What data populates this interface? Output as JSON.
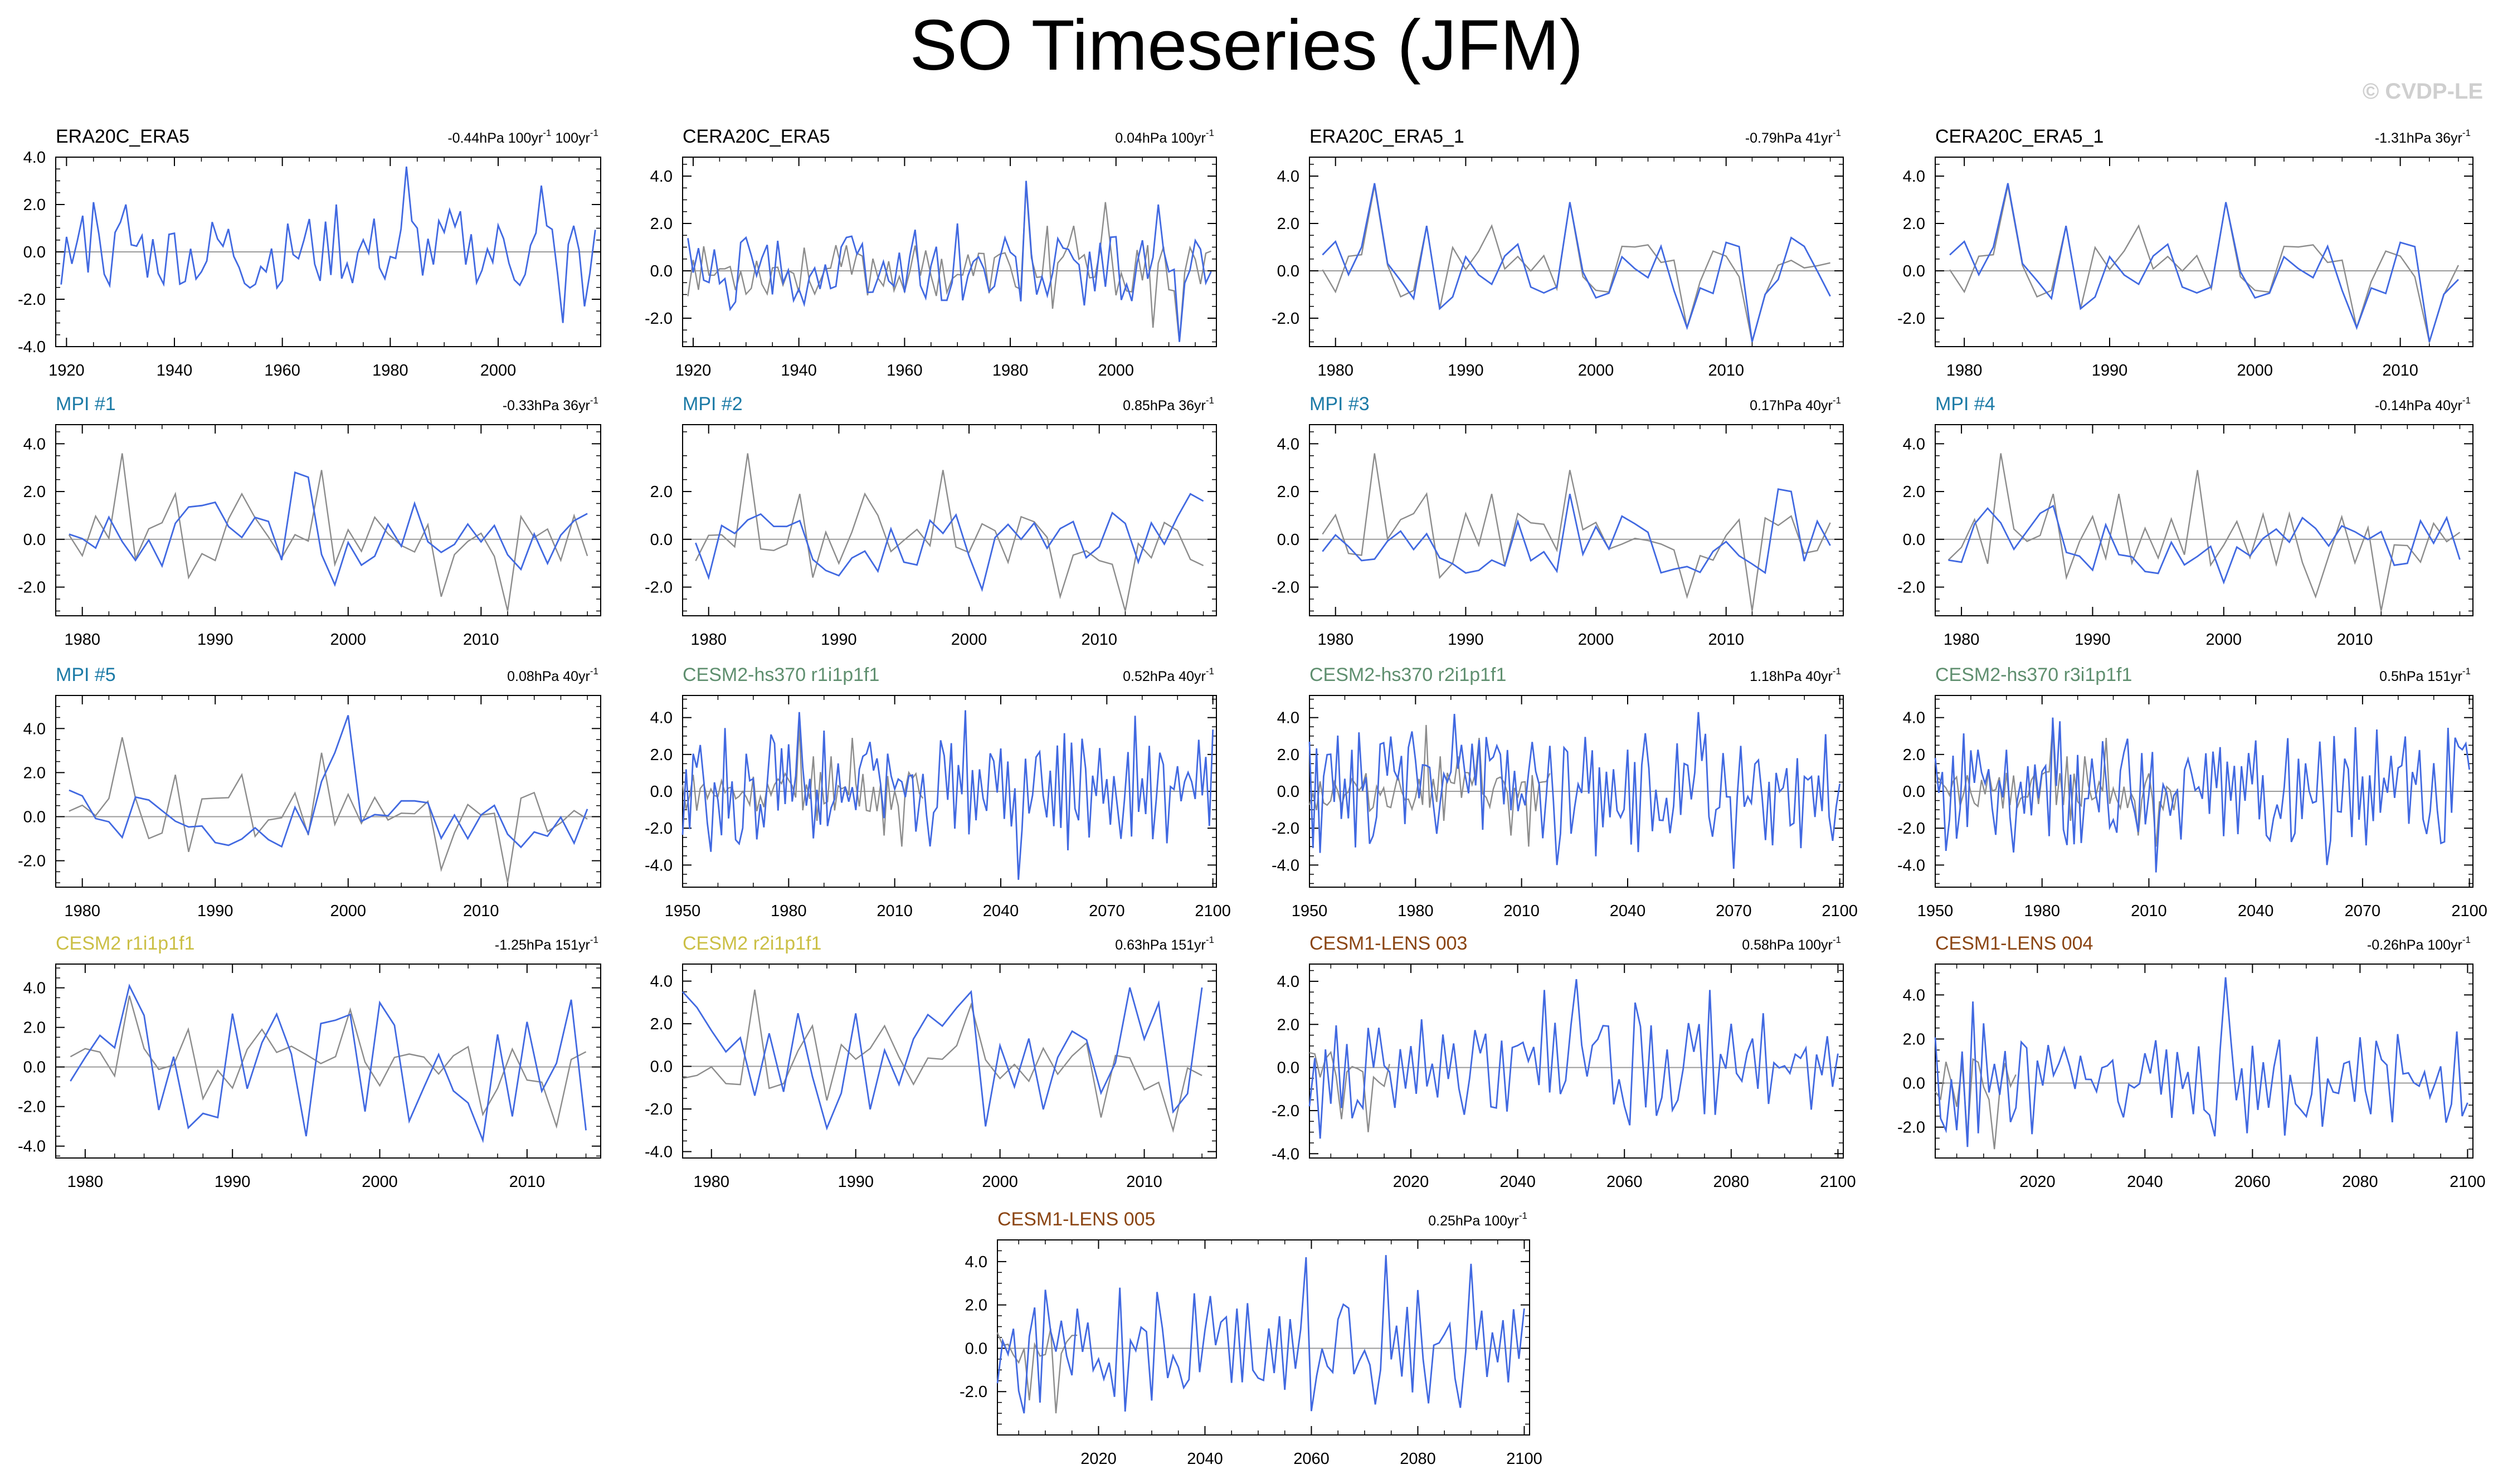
{
  "figure": {
    "title": "SO Timeseries (JFM)",
    "watermark": "© CVDP-LE",
    "colors": {
      "model": "#4169E1",
      "obs": "#8C8C8C",
      "zero": "#9A9A9A",
      "title_obs": "#000000",
      "title_mpi": "#1B7AA6",
      "title_cesmhs": "#5F8F6F",
      "title_cesm2": "#CBBF45",
      "title_lens": "#8B4513"
    }
  },
  "chart_data": [
    {
      "id": 0,
      "type": "line",
      "title": "ERA20C_ERA5",
      "title_color": "#000000",
      "trend": "-0.44hPa 100yr",
      "trend_extra": " 100yr",
      "trend_sup": "-1",
      "trend_extra_sup": "-1",
      "xlim": [
        1918,
        2019
      ],
      "ylim": [
        -4,
        4
      ],
      "xticks": [
        1920,
        1940,
        1960,
        1980,
        2000
      ],
      "yticks": [
        4,
        2,
        0,
        -2,
        -4
      ],
      "ytick_labels": [
        "4.0",
        "2.0",
        "0.0",
        "-2.0",
        "-4.0"
      ],
      "x_start": 1919,
      "x_end": 2018,
      "seed": 11,
      "amp": 1.2,
      "has_obs": false,
      "peaks": [
        [
          1983,
          3.6
        ],
        [
          2008,
          2.8
        ],
        [
          1970,
          2.0
        ],
        [
          1925,
          2.1
        ],
        [
          1931,
          2.0
        ],
        [
          2012,
          -3.0
        ],
        [
          2016,
          -2.3
        ]
      ]
    },
    {
      "id": 1,
      "type": "line",
      "title": "CERA20C_ERA5",
      "title_color": "#000000",
      "trend": "0.04hPa 100yr",
      "trend_extra": "",
      "trend_sup": "-1",
      "trend_extra_sup": "",
      "xlim": [
        1918,
        2019
      ],
      "ylim": [
        -3.2,
        4.8
      ],
      "xticks": [
        1920,
        1940,
        1960,
        1980,
        2000
      ],
      "yticks": [
        4,
        2,
        0,
        -2
      ],
      "ytick_labels": [
        "4.0",
        "2.0",
        "0.0",
        "-2.0"
      ],
      "x_start": 1919,
      "x_end": 2018,
      "seed": 12,
      "amp": 1.2,
      "has_obs": true,
      "peaks": [
        [
          1983,
          3.8
        ],
        [
          2008,
          2.8
        ],
        [
          1970,
          2.0
        ],
        [
          2012,
          -3.0
        ]
      ]
    },
    {
      "id": 2,
      "type": "line",
      "title": "ERA20C_ERA5_1",
      "title_color": "#000000",
      "trend": "-0.79hPa 41yr",
      "trend_extra": "",
      "trend_sup": "-1",
      "trend_extra_sup": "",
      "xlim": [
        1978,
        2019
      ],
      "ylim": [
        -3.2,
        4.8
      ],
      "xticks": [
        1980,
        1990,
        2000,
        2010
      ],
      "yticks": [
        4,
        2,
        0,
        -2
      ],
      "ytick_labels": [
        "4.0",
        "2.0",
        "0.0",
        "-2.0"
      ],
      "x_start": 1979,
      "x_end": 2018,
      "seed": 13,
      "amp": 0.9,
      "has_obs": true,
      "peaks": [
        [
          1983,
          3.7
        ],
        [
          1998,
          2.9
        ],
        [
          1987,
          1.9
        ],
        [
          2010,
          1.2
        ],
        [
          2012,
          -3.0
        ],
        [
          2007,
          -2.4
        ],
        [
          2015,
          1.4
        ],
        [
          1988,
          -1.6
        ]
      ]
    },
    {
      "id": 3,
      "type": "line",
      "title": "CERA20C_ERA5_1",
      "title_color": "#000000",
      "trend": "-1.31hPa 36yr",
      "trend_extra": "",
      "trend_sup": "-1",
      "trend_extra_sup": "",
      "xlim": [
        1978,
        2015
      ],
      "ylim": [
        -3.2,
        4.8
      ],
      "xticks": [
        1980,
        1990,
        2000,
        2010
      ],
      "yticks": [
        4,
        2,
        0,
        -2
      ],
      "ytick_labels": [
        "4.0",
        "2.0",
        "0.0",
        "-2.0"
      ],
      "x_start": 1979,
      "x_end": 2014,
      "seed": 13,
      "amp": 0.9,
      "has_obs": true,
      "peaks": [
        [
          1983,
          3.7
        ],
        [
          1998,
          2.9
        ],
        [
          1987,
          1.9
        ],
        [
          2010,
          1.2
        ],
        [
          2012,
          -3.0
        ],
        [
          2007,
          -2.4
        ],
        [
          1988,
          -1.6
        ]
      ]
    },
    {
      "id": 4,
      "type": "line",
      "title": "MPI #1",
      "title_color": "#1B7AA6",
      "trend": "-0.33hPa 36yr",
      "trend_extra": "",
      "trend_sup": "-1",
      "trend_extra_sup": "",
      "xlim": [
        1978,
        2019
      ],
      "ylim": [
        -3.2,
        4.8
      ],
      "xticks": [
        1980,
        1990,
        2000,
        2010
      ],
      "yticks": [
        4,
        2,
        0,
        -2
      ],
      "ytick_labels": [
        "4.0",
        "2.0",
        "0.0",
        "-2.0"
      ],
      "x_start": 1979,
      "x_end": 2018,
      "seed": 21,
      "amp": 0.9,
      "has_obs": true,
      "peaks": [
        [
          1996,
          2.8
        ],
        [
          1997,
          2.6
        ],
        [
          2005,
          1.5
        ],
        [
          1999,
          -1.9
        ]
      ]
    },
    {
      "id": 5,
      "type": "line",
      "title": "MPI #2",
      "title_color": "#1B7AA6",
      "trend": "0.85hPa 36yr",
      "trend_extra": "",
      "trend_sup": "-1",
      "trend_extra_sup": "",
      "xlim": [
        1978,
        2019
      ],
      "ylim": [
        -3.2,
        4.8
      ],
      "xticks": [
        1980,
        1990,
        2000,
        2010
      ],
      "yticks": [
        2,
        0,
        -2
      ],
      "ytick_labels": [
        "2.0",
        "0.0",
        "-2.0"
      ],
      "x_start": 1979,
      "x_end": 2018,
      "seed": 22,
      "amp": 0.9,
      "has_obs": true,
      "peaks": [
        [
          2017,
          1.9
        ],
        [
          2018,
          1.6
        ],
        [
          2001,
          -2.1
        ],
        [
          1980,
          -1.6
        ]
      ]
    },
    {
      "id": 6,
      "type": "line",
      "title": "MPI #3",
      "title_color": "#1B7AA6",
      "trend": "0.17hPa 40yr",
      "trend_extra": "",
      "trend_sup": "-1",
      "trend_extra_sup": "",
      "xlim": [
        1978,
        2019
      ],
      "ylim": [
        -3.2,
        4.8
      ],
      "xticks": [
        1980,
        1990,
        2000,
        2010
      ],
      "yticks": [
        4,
        2,
        0,
        -2
      ],
      "ytick_labels": [
        "4.0",
        "2.0",
        "0.0",
        "-2.0"
      ],
      "x_start": 1979,
      "x_end": 2018,
      "seed": 23,
      "amp": 0.9,
      "has_obs": true,
      "peaks": [
        [
          2014,
          2.1
        ],
        [
          2015,
          2.0
        ],
        [
          1998,
          1.9
        ],
        [
          2005,
          -1.4
        ]
      ]
    },
    {
      "id": 7,
      "type": "line",
      "title": "MPI #4",
      "title_color": "#1B7AA6",
      "trend": "-0.14hPa 40yr",
      "trend_extra": "",
      "trend_sup": "-1",
      "trend_extra_sup": "",
      "xlim": [
        1978,
        2019
      ],
      "ylim": [
        -3.2,
        4.8
      ],
      "xticks": [
        1980,
        1990,
        2000,
        2010
      ],
      "yticks": [
        4,
        2,
        0,
        -2
      ],
      "ytick_labels": [
        "4.0",
        "2.0",
        "0.0",
        "-2.0"
      ],
      "x_start": 1979,
      "x_end": 2018,
      "seed": 24,
      "amp": 0.9,
      "has_obs": true,
      "peaks": [
        [
          1987,
          1.4
        ],
        [
          2000,
          -1.8
        ],
        [
          2017,
          0.9
        ],
        [
          1982,
          1.3
        ]
      ]
    },
    {
      "id": 8,
      "type": "line",
      "title": "MPI #5",
      "title_color": "#1B7AA6",
      "trend": "0.08hPa 40yr",
      "trend_extra": "",
      "trend_sup": "-1",
      "trend_extra_sup": "",
      "xlim": [
        1978,
        2019
      ],
      "ylim": [
        -3.2,
        5.5
      ],
      "xticks": [
        1980,
        1990,
        2000,
        2010
      ],
      "yticks": [
        4,
        2,
        0,
        -2
      ],
      "ytick_labels": [
        "4.0",
        "2.0",
        "0.0",
        "-2.0"
      ],
      "x_start": 1979,
      "x_end": 2018,
      "seed": 25,
      "amp": 0.9,
      "has_obs": true,
      "peaks": [
        [
          2000,
          4.6
        ],
        [
          1999,
          2.9
        ],
        [
          1998,
          1.6
        ],
        [
          1991,
          -1.3
        ]
      ]
    },
    {
      "id": 9,
      "type": "line",
      "title": "CESM2-hs370 r1i1p1f1",
      "title_color": "#5F8F6F",
      "trend": "0.52hPa 40yr",
      "trend_extra": "",
      "trend_sup": "-1",
      "trend_extra_sup": "",
      "xlim": [
        1950,
        2101
      ],
      "ylim": [
        -5.2,
        5.2
      ],
      "xticks": [
        1950,
        1980,
        2010,
        2040,
        2070,
        2100
      ],
      "yticks": [
        4,
        2,
        0,
        -2,
        -4
      ],
      "ytick_labels": [
        "4.0",
        "2.0",
        "0.0",
        "-2.0",
        "-4.0"
      ],
      "x_start": 1950,
      "x_end": 2100,
      "seed": 31,
      "amp": 2.2,
      "has_obs": true,
      "obs_start": 1950,
      "obs_end": 2018,
      "peaks": [
        [
          2045,
          -4.8
        ],
        [
          2030,
          4.4
        ],
        [
          1983,
          4.3
        ],
        [
          2078,
          4.1
        ]
      ]
    },
    {
      "id": 10,
      "type": "line",
      "title": "CESM2-hs370 r2i1p1f1",
      "title_color": "#5F8F6F",
      "trend": "1.18hPa 40yr",
      "trend_extra": "",
      "trend_sup": "-1",
      "trend_extra_sup": "",
      "xlim": [
        1950,
        2101
      ],
      "ylim": [
        -5.2,
        5.2
      ],
      "xticks": [
        1950,
        1980,
        2010,
        2040,
        2070,
        2100
      ],
      "yticks": [
        4,
        2,
        0,
        -2,
        -4
      ],
      "ytick_labels": [
        "4.0",
        "2.0",
        "0.0",
        "-2.0",
        "-4.0"
      ],
      "x_start": 1950,
      "x_end": 2100,
      "seed": 32,
      "amp": 2.2,
      "has_obs": true,
      "obs_start": 1950,
      "obs_end": 2018,
      "peaks": [
        [
          1991,
          4.2
        ],
        [
          2060,
          4.3
        ],
        [
          2070,
          -4.2
        ],
        [
          2020,
          -4.0
        ]
      ]
    },
    {
      "id": 11,
      "type": "line",
      "title": "CESM2-hs370 r3i1p1f1",
      "title_color": "#5F8F6F",
      "trend": "0.5hPa 151yr",
      "trend_extra": "",
      "trend_sup": "-1",
      "trend_extra_sup": "",
      "xlim": [
        1950,
        2101
      ],
      "ylim": [
        -5.2,
        5.2
      ],
      "xticks": [
        1950,
        1980,
        2010,
        2040,
        2070,
        2100
      ],
      "yticks": [
        4,
        2,
        0,
        -2,
        -4
      ],
      "ytick_labels": [
        "4.0",
        "2.0",
        "0.0",
        "-2.0",
        "-4.0"
      ],
      "x_start": 1950,
      "x_end": 2100,
      "seed": 33,
      "amp": 2.2,
      "has_obs": true,
      "obs_start": 1950,
      "obs_end": 2018,
      "peaks": [
        [
          1983,
          4.0
        ],
        [
          1985,
          3.8
        ],
        [
          2012,
          -4.4
        ],
        [
          2060,
          -4.0
        ]
      ]
    },
    {
      "id": 12,
      "type": "line",
      "title": "CESM2 r1i1p1f1",
      "title_color": "#CBBF45",
      "trend": "-1.25hPa 151yr",
      "trend_extra": "",
      "trend_sup": "-1",
      "trend_extra_sup": "",
      "xlim": [
        1978,
        2015
      ],
      "ylim": [
        -4.6,
        5.2
      ],
      "xticks": [
        1980,
        1990,
        2000,
        2010
      ],
      "yticks": [
        4,
        2,
        0,
        -2,
        -4
      ],
      "ytick_labels": [
        "4.0",
        "2.0",
        "0.0",
        "-2.0",
        "-4.0"
      ],
      "x_start": 1979,
      "x_end": 2014,
      "seed": 41,
      "amp": 2.3,
      "has_obs": true,
      "peaks": [
        [
          1983,
          4.1
        ],
        [
          1995,
          -3.5
        ],
        [
          2007,
          -3.7
        ],
        [
          2013,
          3.4
        ],
        [
          2014,
          -3.2
        ]
      ]
    },
    {
      "id": 13,
      "type": "line",
      "title": "CESM2 r2i1p1f1",
      "title_color": "#CBBF45",
      "trend": "0.63hPa 151yr",
      "trend_extra": "",
      "trend_sup": "-1",
      "trend_extra_sup": "",
      "xlim": [
        1978,
        2015
      ],
      "ylim": [
        -4.3,
        4.8
      ],
      "xticks": [
        1980,
        1990,
        2000,
        2010
      ],
      "yticks": [
        4,
        2,
        0,
        -2,
        -4
      ],
      "ytick_labels": [
        "4.0",
        "2.0",
        "0.0",
        "-2.0",
        "-4.0"
      ],
      "x_start": 1978,
      "x_end": 2014,
      "seed": 42,
      "amp": 2.2,
      "has_obs": true,
      "peaks": [
        [
          1978,
          3.5
        ],
        [
          2014,
          3.7
        ],
        [
          1988,
          -2.9
        ],
        [
          2009,
          3.7
        ],
        [
          1998,
          3.5
        ]
      ]
    },
    {
      "id": 14,
      "type": "line",
      "title": "CESM1-LENS 003",
      "title_color": "#8B4513",
      "trend": "0.58hPa 100yr",
      "trend_extra": "",
      "trend_sup": "-1",
      "trend_extra_sup": "",
      "xlim": [
        2001,
        2101
      ],
      "ylim": [
        -4.2,
        4.8
      ],
      "xticks": [
        2020,
        2040,
        2060,
        2080,
        2100
      ],
      "yticks": [
        4,
        2,
        0,
        -2,
        -4
      ],
      "ytick_labels": [
        "4.0",
        "2.0",
        "0.0",
        "-2.0",
        "-4.0"
      ],
      "x_start": 2001,
      "x_end": 2100,
      "seed": 51,
      "amp": 1.8,
      "has_obs": true,
      "obs_start": 2001,
      "obs_end": 2016,
      "peaks": [
        [
          2051,
          4.1
        ],
        [
          2003,
          -3.3
        ],
        [
          2045,
          3.6
        ],
        [
          2076,
          3.6
        ]
      ]
    },
    {
      "id": 15,
      "type": "line",
      "title": "CESM1-LENS 004",
      "title_color": "#8B4513",
      "trend": "-0.26hPa 100yr",
      "trend_extra": "",
      "trend_sup": "-1",
      "trend_extra_sup": "",
      "xlim": [
        2001,
        2101
      ],
      "ylim": [
        -3.4,
        5.4
      ],
      "xticks": [
        2020,
        2040,
        2060,
        2080,
        2100
      ],
      "yticks": [
        4,
        2,
        0,
        -2
      ],
      "ytick_labels": [
        "4.0",
        "2.0",
        "0.0",
        "-2.0"
      ],
      "x_start": 2001,
      "x_end": 2100,
      "seed": 52,
      "amp": 1.6,
      "has_obs": true,
      "obs_start": 2001,
      "obs_end": 2016,
      "peaks": [
        [
          2055,
          4.8
        ],
        [
          2008,
          3.7
        ],
        [
          2007,
          -2.9
        ],
        [
          2099,
          -1.5
        ]
      ]
    },
    {
      "id": 16,
      "type": "line",
      "title": "CESM1-LENS 005",
      "title_color": "#8B4513",
      "trend": "0.25hPa 100yr",
      "trend_extra": "",
      "trend_sup": "-1",
      "trend_extra_sup": "",
      "xlim": [
        2001,
        2101
      ],
      "ylim": [
        -4.0,
        5.0
      ],
      "xticks": [
        2020,
        2040,
        2060,
        2080,
        2100
      ],
      "yticks": [
        4,
        2,
        0,
        -2
      ],
      "ytick_labels": [
        "4.0",
        "2.0",
        "0.0",
        "-2.0"
      ],
      "x_start": 2001,
      "x_end": 2100,
      "seed": 53,
      "amp": 1.8,
      "has_obs": true,
      "obs_start": 2001,
      "obs_end": 2016,
      "peaks": [
        [
          2059,
          4.2
        ],
        [
          2074,
          4.3
        ],
        [
          2060,
          -2.9
        ],
        [
          2006,
          -3.0
        ],
        [
          2090,
          3.9
        ]
      ]
    }
  ]
}
